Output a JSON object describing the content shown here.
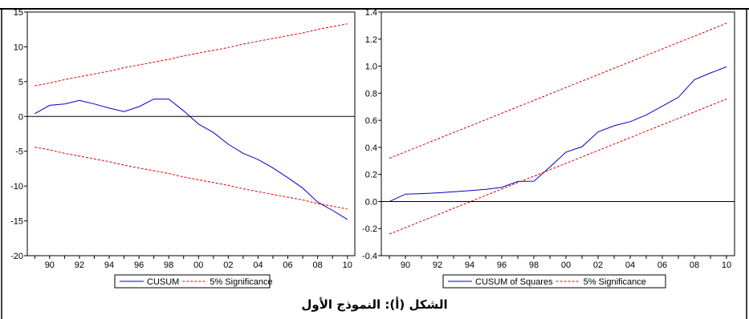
{
  "caption": "الشكل (أ): النموذج الأول",
  "chart_data": [
    {
      "type": "line",
      "x": [
        1989,
        1990,
        1991,
        1992,
        1993,
        1994,
        1995,
        1996,
        1997,
        1998,
        1999,
        2000,
        2001,
        2002,
        2003,
        2004,
        2005,
        2006,
        2007,
        2008,
        2009,
        2010
      ],
      "xticks": [
        1990,
        1992,
        1994,
        1996,
        1998,
        2000,
        2002,
        2004,
        2006,
        2008,
        2010
      ],
      "xtick_labels": [
        "90",
        "92",
        "94",
        "96",
        "98",
        "00",
        "02",
        "04",
        "06",
        "08",
        "10"
      ],
      "xlim": [
        1988.5,
        2010.5
      ],
      "ylim": [
        -20,
        15
      ],
      "yticks": [
        15,
        10,
        5,
        0,
        -5,
        -10,
        -15,
        -20
      ],
      "ytick_labels": [
        "15",
        "10",
        "5",
        "0",
        "-5",
        "-10",
        "-15",
        "-20"
      ],
      "legend_position": "bottom-center",
      "zero_line": true,
      "series": [
        {
          "name": "CUSUM",
          "color": "#0000cc",
          "style": "solid",
          "values": [
            0.4,
            1.6,
            1.8,
            2.3,
            1.8,
            1.2,
            0.7,
            1.4,
            2.5,
            2.5,
            0.8,
            -1.1,
            -2.3,
            -4.0,
            -5.3,
            -6.2,
            -7.4,
            -8.8,
            -10.3,
            -12.3,
            -13.5,
            -14.8
          ]
        },
        {
          "name": "5% Significance",
          "color": "#dd0000",
          "style": "dashed",
          "values": [
            4.4,
            4.8,
            5.3,
            5.7,
            6.1,
            6.5,
            7.0,
            7.4,
            7.8,
            8.2,
            8.7,
            9.1,
            9.5,
            9.9,
            10.4,
            10.8,
            11.2,
            11.6,
            12.0,
            12.5,
            12.9,
            13.3
          ]
        },
        {
          "name": "",
          "color": "#dd0000",
          "style": "dashed",
          "values": [
            -4.4,
            -4.8,
            -5.3,
            -5.7,
            -6.1,
            -6.5,
            -7.0,
            -7.4,
            -7.8,
            -8.2,
            -8.7,
            -9.1,
            -9.5,
            -9.9,
            -10.4,
            -10.8,
            -11.2,
            -11.6,
            -12.0,
            -12.5,
            -12.9,
            -13.3
          ]
        }
      ]
    },
    {
      "type": "line",
      "x": [
        1989,
        1990,
        1991,
        1992,
        1993,
        1994,
        1995,
        1996,
        1997,
        1998,
        1999,
        2000,
        2001,
        2002,
        2003,
        2004,
        2005,
        2006,
        2007,
        2008,
        2009,
        2010
      ],
      "xticks": [
        1990,
        1992,
        1994,
        1996,
        1998,
        2000,
        2002,
        2004,
        2006,
        2008,
        2010
      ],
      "xtick_labels": [
        "90",
        "92",
        "94",
        "96",
        "98",
        "00",
        "02",
        "04",
        "06",
        "08",
        "10"
      ],
      "xlim": [
        1988.5,
        2010.5
      ],
      "ylim": [
        -0.4,
        1.4
      ],
      "yticks": [
        1.4,
        1.2,
        1.0,
        0.8,
        0.6,
        0.4,
        0.2,
        0.0,
        -0.2,
        -0.4
      ],
      "ytick_labels": [
        "1.4",
        "1.2",
        "1.0",
        "0.8",
        "0.6",
        "0.4",
        "0.2",
        "0.0",
        "-0.2",
        "-0.4"
      ],
      "legend_position": "bottom-center",
      "zero_line": true,
      "series": [
        {
          "name": "CUSUM of Squares",
          "color": "#0000cc",
          "style": "solid",
          "values": [
            0.0,
            0.055,
            0.058,
            0.064,
            0.072,
            0.08,
            0.09,
            0.105,
            0.148,
            0.15,
            0.255,
            0.365,
            0.405,
            0.515,
            0.56,
            0.59,
            0.64,
            0.705,
            0.77,
            0.9,
            0.95,
            0.995
          ]
        },
        {
          "name": "5% Significance",
          "color": "#dd0000",
          "style": "dashed",
          "values": [
            -0.24,
            -0.193,
            -0.145,
            -0.098,
            -0.05,
            -0.003,
            0.045,
            0.092,
            0.14,
            0.187,
            0.235,
            0.282,
            0.33,
            0.377,
            0.425,
            0.472,
            0.52,
            0.567,
            0.615,
            0.662,
            0.71,
            0.757
          ]
        },
        {
          "name": "",
          "color": "#dd0000",
          "style": "dashed",
          "values": [
            0.32,
            0.367,
            0.415,
            0.462,
            0.51,
            0.557,
            0.605,
            0.652,
            0.7,
            0.747,
            0.795,
            0.842,
            0.89,
            0.937,
            0.985,
            1.032,
            1.08,
            1.127,
            1.175,
            1.222,
            1.27,
            1.317
          ]
        }
      ]
    }
  ]
}
